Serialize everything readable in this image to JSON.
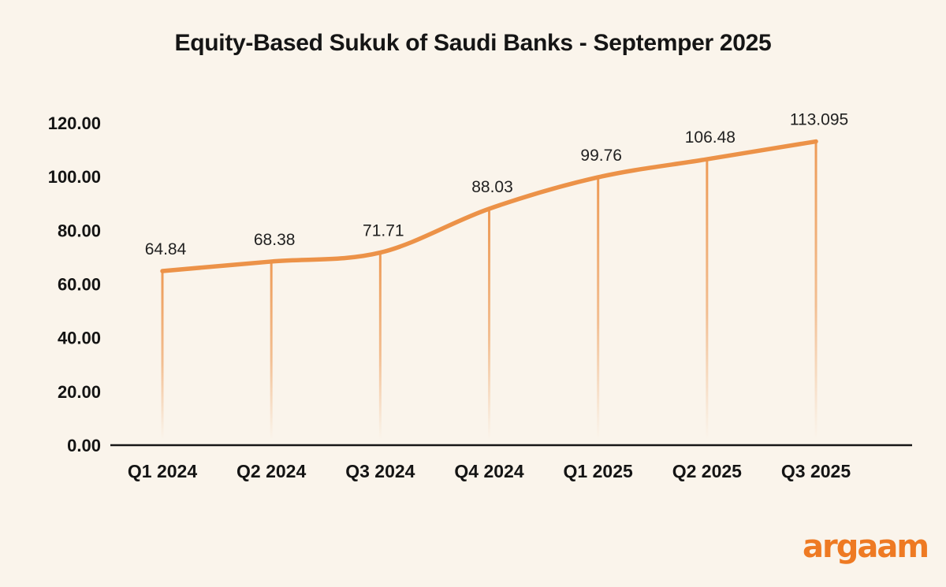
{
  "page": {
    "background_color": "#FAF4EB"
  },
  "branding": {
    "logo_text": "argaam",
    "logo_color": "#EE7A23"
  },
  "chart_data": {
    "type": "line",
    "title": "Equity-Based Sukuk of Saudi Banks - Septemper 2025",
    "categories": [
      "Q1 2024",
      "Q2 2024",
      "Q3 2024",
      "Q4 2024",
      "Q1 2025",
      "Q2 2025",
      "Q3 2025"
    ],
    "values": [
      64.84,
      68.38,
      71.71,
      88.03,
      99.76,
      106.48,
      113.095
    ],
    "value_labels": [
      "64.84",
      "68.38",
      "71.71",
      "88.03",
      "99.76",
      "106.48",
      "113.095"
    ],
    "xlabel": "",
    "ylabel": "",
    "ylim": [
      0,
      120
    ],
    "ytick_step": 20,
    "ytick_labels": [
      "0.00",
      "20.00",
      "40.00",
      "60.00",
      "80.00",
      "100.00",
      "120.00"
    ],
    "grid": false,
    "legend": false,
    "line_color": "#EC9248",
    "drop_line_color": "#EC9248",
    "axis_color": "#161616",
    "tick_label_color": "#141414",
    "point_label_color": "#212121"
  }
}
